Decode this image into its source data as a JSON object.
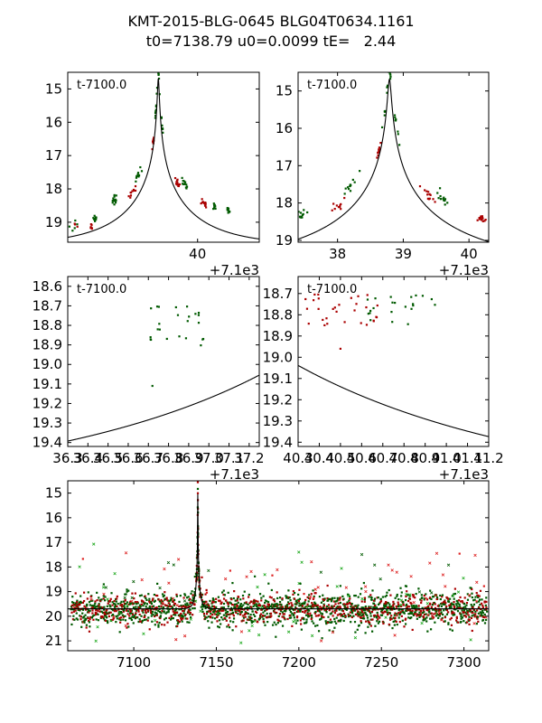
{
  "figure": {
    "title_line1": "KMT-2015-BLG-0645 BLG04T0634.1161",
    "title_line2": "t0=7138.79 u0=0.0099 tE=   2.44"
  },
  "colors": {
    "dark_green": "#005a00",
    "dark_red": "#aa0000",
    "light_red": "#dd2222",
    "light_green": "#22aa22",
    "model_line": "#000000"
  },
  "chart_data": [
    {
      "id": "panel1",
      "type": "scatter",
      "label": "t-7100.0",
      "offset_label": "+7.1e3",
      "xlim": [
        36.0,
        41.9
      ],
      "ylim": [
        19.6,
        14.5
      ],
      "yinvert": true,
      "xticks": [
        40
      ],
      "xtick_labels": [
        "40"
      ],
      "yticks": [
        15,
        16,
        17,
        18,
        19
      ],
      "ytick_labels": [
        "15",
        "16",
        "17",
        "18",
        "19"
      ],
      "model": {
        "t0": 38.79,
        "u0": 0.0099,
        "tE": 2.44,
        "base_mag": 19.7
      }
    },
    {
      "id": "panel2",
      "type": "scatter",
      "label": "t-7100.0",
      "offset_label": "+7.1e3",
      "xlim": [
        37.4,
        40.3
      ],
      "ylim": [
        19.05,
        14.5
      ],
      "yinvert": true,
      "xticks": [
        38,
        39,
        40
      ],
      "xtick_labels": [
        "38",
        "39",
        "40"
      ],
      "yticks": [
        15,
        16,
        17,
        18,
        19
      ],
      "ytick_labels": [
        "15",
        "16",
        "17",
        "18",
        "19"
      ],
      "model": {
        "t0": 38.79,
        "u0": 0.0099,
        "tE": 2.44,
        "base_mag": 19.7
      }
    },
    {
      "id": "panel3",
      "type": "scatter",
      "label": "t-7100.0",
      "offset_label": "+7.1e3",
      "xlim": [
        36.3,
        37.25
      ],
      "ylim": [
        19.42,
        18.55
      ],
      "yinvert": true,
      "xticks": [
        36.3,
        36.4,
        36.5,
        36.6,
        36.7,
        36.8,
        36.9,
        37.0,
        37.1,
        37.2
      ],
      "xtick_labels": [
        "36.3",
        "36.4",
        "36.5",
        "36.6",
        "36.7",
        "36.8",
        "36.9",
        "37.0",
        "37.1",
        "37.2"
      ],
      "yticks": [
        18.6,
        18.7,
        18.8,
        18.9,
        19.0,
        19.1,
        19.2,
        19.3,
        19.4
      ],
      "ytick_labels": [
        "18.6",
        "18.7",
        "18.8",
        "18.9",
        "19.0",
        "19.1",
        "19.2",
        "19.3",
        "19.4"
      ],
      "model": {
        "t0": 38.79,
        "u0": 0.0099,
        "tE": 2.44,
        "base_mag": 19.7
      }
    },
    {
      "id": "panel4",
      "type": "scatter",
      "label": "t-7100.0",
      "offset_label": "+7.1e3",
      "xlim": [
        40.3,
        41.2
      ],
      "ylim": [
        19.42,
        18.62
      ],
      "yinvert": true,
      "xticks": [
        40.3,
        40.4,
        40.5,
        40.6,
        40.7,
        40.8,
        40.9,
        41.0,
        41.1,
        41.2
      ],
      "xtick_labels": [
        "40.3",
        "40.4",
        "40.5",
        "40.6",
        "40.7",
        "40.8",
        "40.9",
        "41.0",
        "41.1",
        "41.2"
      ],
      "yticks": [
        18.7,
        18.8,
        18.9,
        19.0,
        19.1,
        19.2,
        19.3,
        19.4
      ],
      "ytick_labels": [
        "18.7",
        "18.8",
        "18.9",
        "19.0",
        "19.1",
        "19.2",
        "19.3",
        "19.4"
      ],
      "model": {
        "t0": 38.79,
        "u0": 0.0099,
        "tE": 2.44,
        "base_mag": 19.7
      }
    },
    {
      "id": "panel5",
      "type": "scatter",
      "xlim": [
        7060,
        7315
      ],
      "ylim": [
        21.4,
        14.5
      ],
      "yinvert": true,
      "xticks": [
        7100,
        7150,
        7200,
        7250,
        7300
      ],
      "xtick_labels": [
        "7100",
        "7150",
        "7200",
        "7250",
        "7300"
      ],
      "yticks": [
        15,
        16,
        17,
        18,
        19,
        20,
        21
      ],
      "ytick_labels": [
        "15",
        "16",
        "17",
        "18",
        "19",
        "20",
        "21"
      ],
      "model": {
        "t0": 7138.79,
        "u0": 0.0099,
        "tE": 2.44,
        "base_mag": 19.7
      }
    }
  ]
}
